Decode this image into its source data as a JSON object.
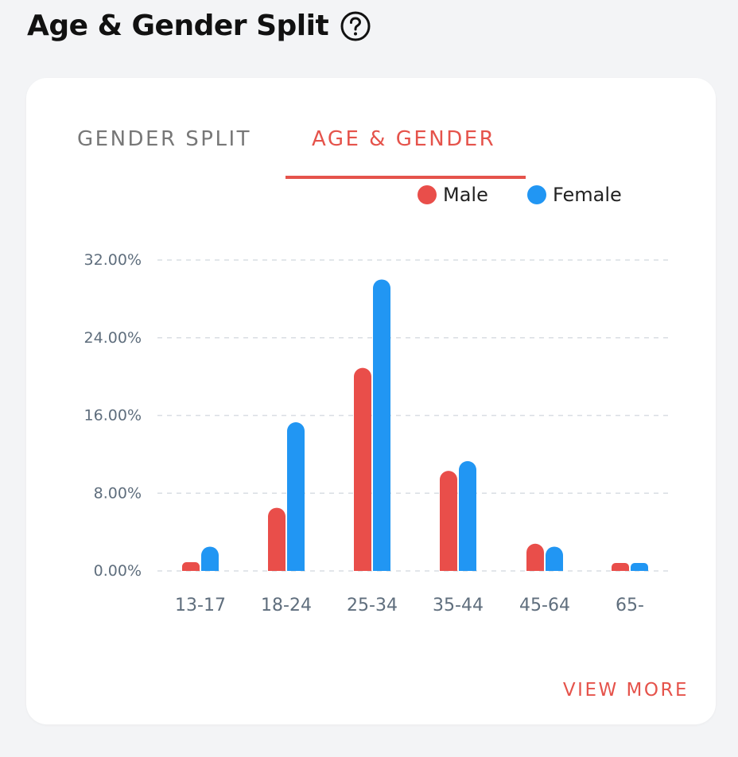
{
  "header": {
    "title": "Age & Gender Split",
    "help_icon": "question-circle-icon"
  },
  "tabs": [
    {
      "label": "GENDER SPLIT",
      "active": false
    },
    {
      "label": "AGE & GENDER",
      "active": true
    }
  ],
  "colors": {
    "male": "#e94e4a",
    "female": "#2196f3",
    "accent": "#e5534b"
  },
  "view_more_label": "VIEW MORE",
  "chart_data": {
    "type": "bar",
    "categories": [
      "13-17",
      "18-24",
      "25-34",
      "35-44",
      "45-64",
      "65-"
    ],
    "series": [
      {
        "name": "Male",
        "values": [
          0.9,
          6.5,
          20.9,
          10.3,
          2.8,
          0.6
        ]
      },
      {
        "name": "Female",
        "values": [
          2.5,
          15.3,
          30.0,
          11.3,
          2.5,
          0.6
        ]
      }
    ],
    "y_ticks": [
      "32.00%",
      "24.00%",
      "16.00%",
      "8.00%",
      "0.00%"
    ],
    "y_tick_values": [
      32,
      24,
      16,
      8,
      0
    ],
    "ylim": [
      0,
      32
    ],
    "grid": true,
    "legend_position": "top-right"
  }
}
